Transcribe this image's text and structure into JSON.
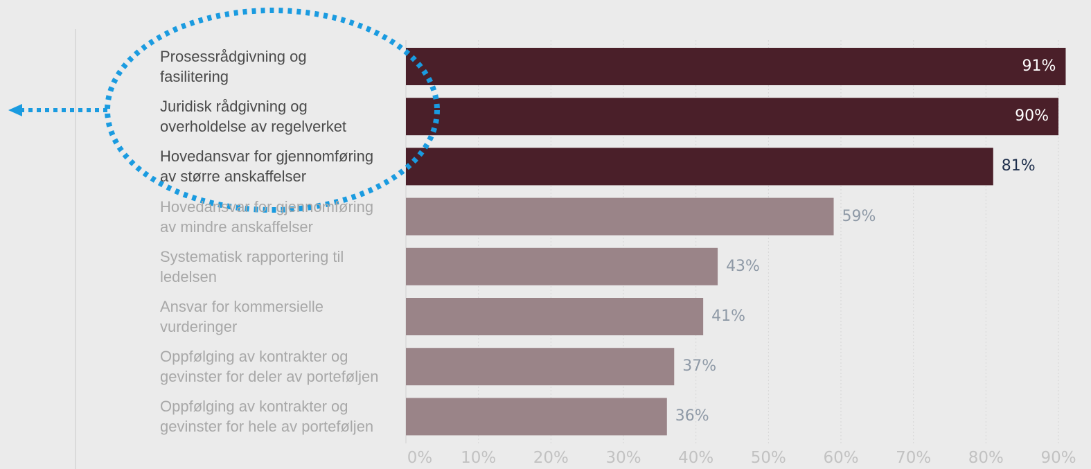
{
  "chart_data": {
    "type": "bar",
    "orientation": "horizontal",
    "categories": [
      "Prosessrådgivning og\nfasilitering",
      "Juridisk rådgivning og\noverholdelse av regelverket",
      "Hovedansvar for gjennomføring\nav større anskaffelser",
      "Hovedansvar for gjennomføring\nav mindre anskaffelser",
      "Systematisk rapportering til\nledelsen",
      "Ansvar for kommersielle\nvurderinger",
      "Oppfølging av kontrakter og\ngevinster for deler av porteføljen",
      "Oppfølging av kontrakter og\ngevinster for hele av porteføljen"
    ],
    "values": [
      91,
      90,
      81,
      59,
      43,
      41,
      37,
      36
    ],
    "value_labels": [
      "91%",
      "90%",
      "81%",
      "59%",
      "43%",
      "41%",
      "37%",
      "36%"
    ],
    "highlighted": [
      true,
      true,
      true,
      false,
      false,
      false,
      false,
      false
    ],
    "xlim": [
      0,
      90
    ],
    "x_ticks": [
      0,
      10,
      20,
      30,
      40,
      50,
      60,
      70,
      80,
      90
    ],
    "x_tick_labels": [
      "0%",
      "10%",
      "20%",
      "30%",
      "40%",
      "50%",
      "60%",
      "70%",
      "80%",
      "90%"
    ],
    "grid": "vertical dotted",
    "title": "",
    "xlabel": "",
    "ylabel": "",
    "annotation": "dotted ellipse around the top three categories with a dotted arrow pointing left"
  },
  "colors": {
    "background": "#ebebeb",
    "bar_highlight": "#4a1f29",
    "bar_muted": "#9a8488",
    "label_highlight": "#4a4a4a",
    "label_muted": "#a8a8a8",
    "value_inside": "#ffffff",
    "value_outside_highlight": "#1c2d4a",
    "value_muted": "#8e99a6",
    "tick": "#c2c2c2",
    "annotation": "#1a9be0"
  }
}
